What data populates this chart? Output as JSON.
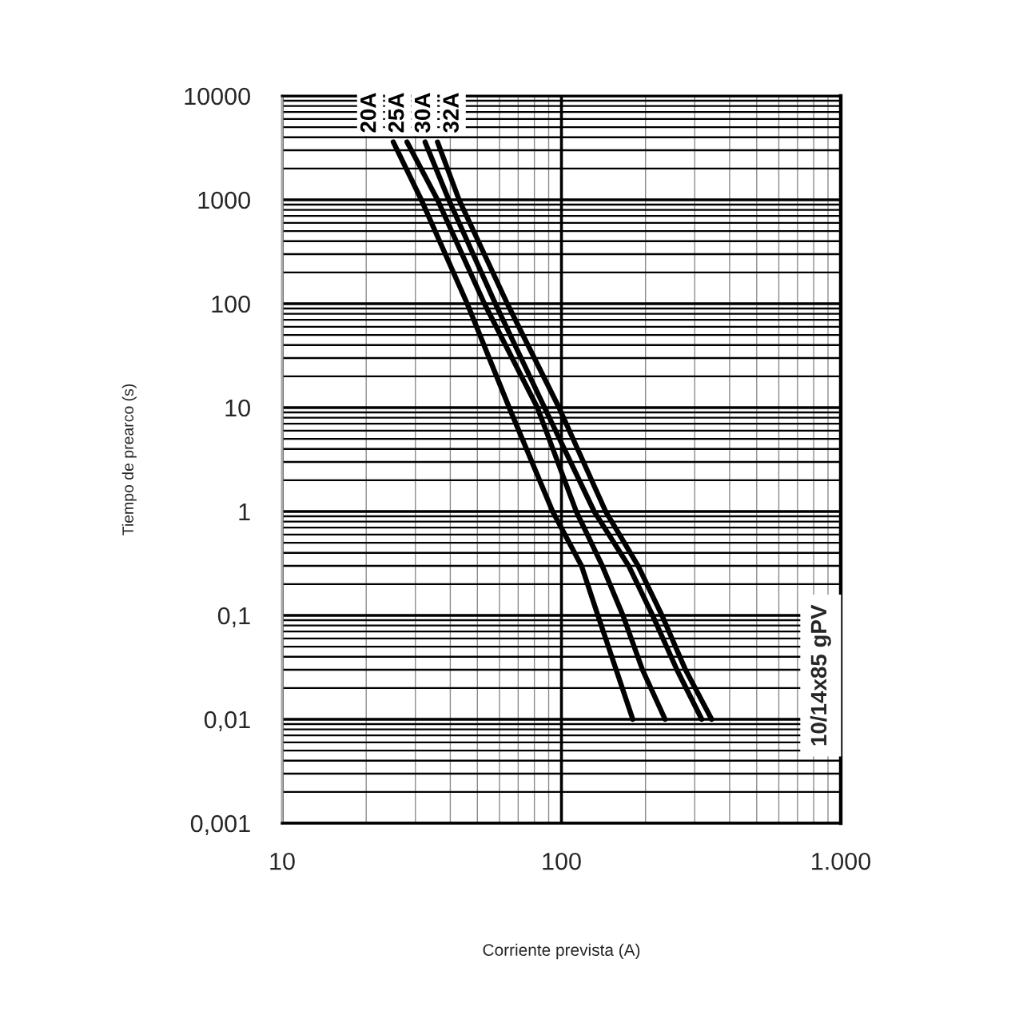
{
  "chart_data": {
    "type": "line",
    "xlabel": "Corriente prevista (A)",
    "ylabel": "Tiempo de prearco (s)",
    "log": "xy",
    "xlim": [
      10,
      1000
    ],
    "ylim": [
      0.001,
      10000
    ],
    "xticks": [
      10,
      100,
      {
        "value": 1000,
        "label": "1.000"
      }
    ],
    "yticks": [
      {
        "value": 0.001,
        "label": "0,001"
      },
      {
        "value": 0.01,
        "label": "0,01"
      },
      {
        "value": 0.1,
        "label": "0,1"
      },
      1,
      10,
      100,
      1000,
      10000
    ],
    "grid": true,
    "line_style": "solid",
    "annotations": [
      "10/14x85 gPV"
    ],
    "series": [
      {
        "name": "20A",
        "color": "#000000",
        "x": [
          25,
          31.5,
          46,
          65,
          93,
          118,
          135,
          157,
          180
        ],
        "values": [
          3600,
          1000,
          100,
          10,
          1,
          0.3,
          0.1,
          0.03,
          0.01
        ]
      },
      {
        "name": "25A",
        "color": "#000000",
        "x": [
          28,
          36,
          53,
          82,
          113,
          140,
          166,
          195,
          235
        ],
        "values": [
          3600,
          1000,
          100,
          10,
          1,
          0.3,
          0.1,
          0.03,
          0.01
        ]
      },
      {
        "name": "30A",
        "color": "#000000",
        "x": [
          32.5,
          39.5,
          58,
          87,
          131,
          174,
          212,
          259,
          318
        ],
        "values": [
          3600,
          1000,
          100,
          10,
          1,
          0.3,
          0.1,
          0.03,
          0.01
        ]
      },
      {
        "name": "32A",
        "color": "#000000",
        "x": [
          36,
          43,
          64,
          98,
          144,
          188,
          229,
          278,
          345
        ],
        "values": [
          3600,
          1000,
          100,
          10,
          1,
          0.3,
          0.1,
          0.03,
          0.01
        ]
      }
    ]
  }
}
